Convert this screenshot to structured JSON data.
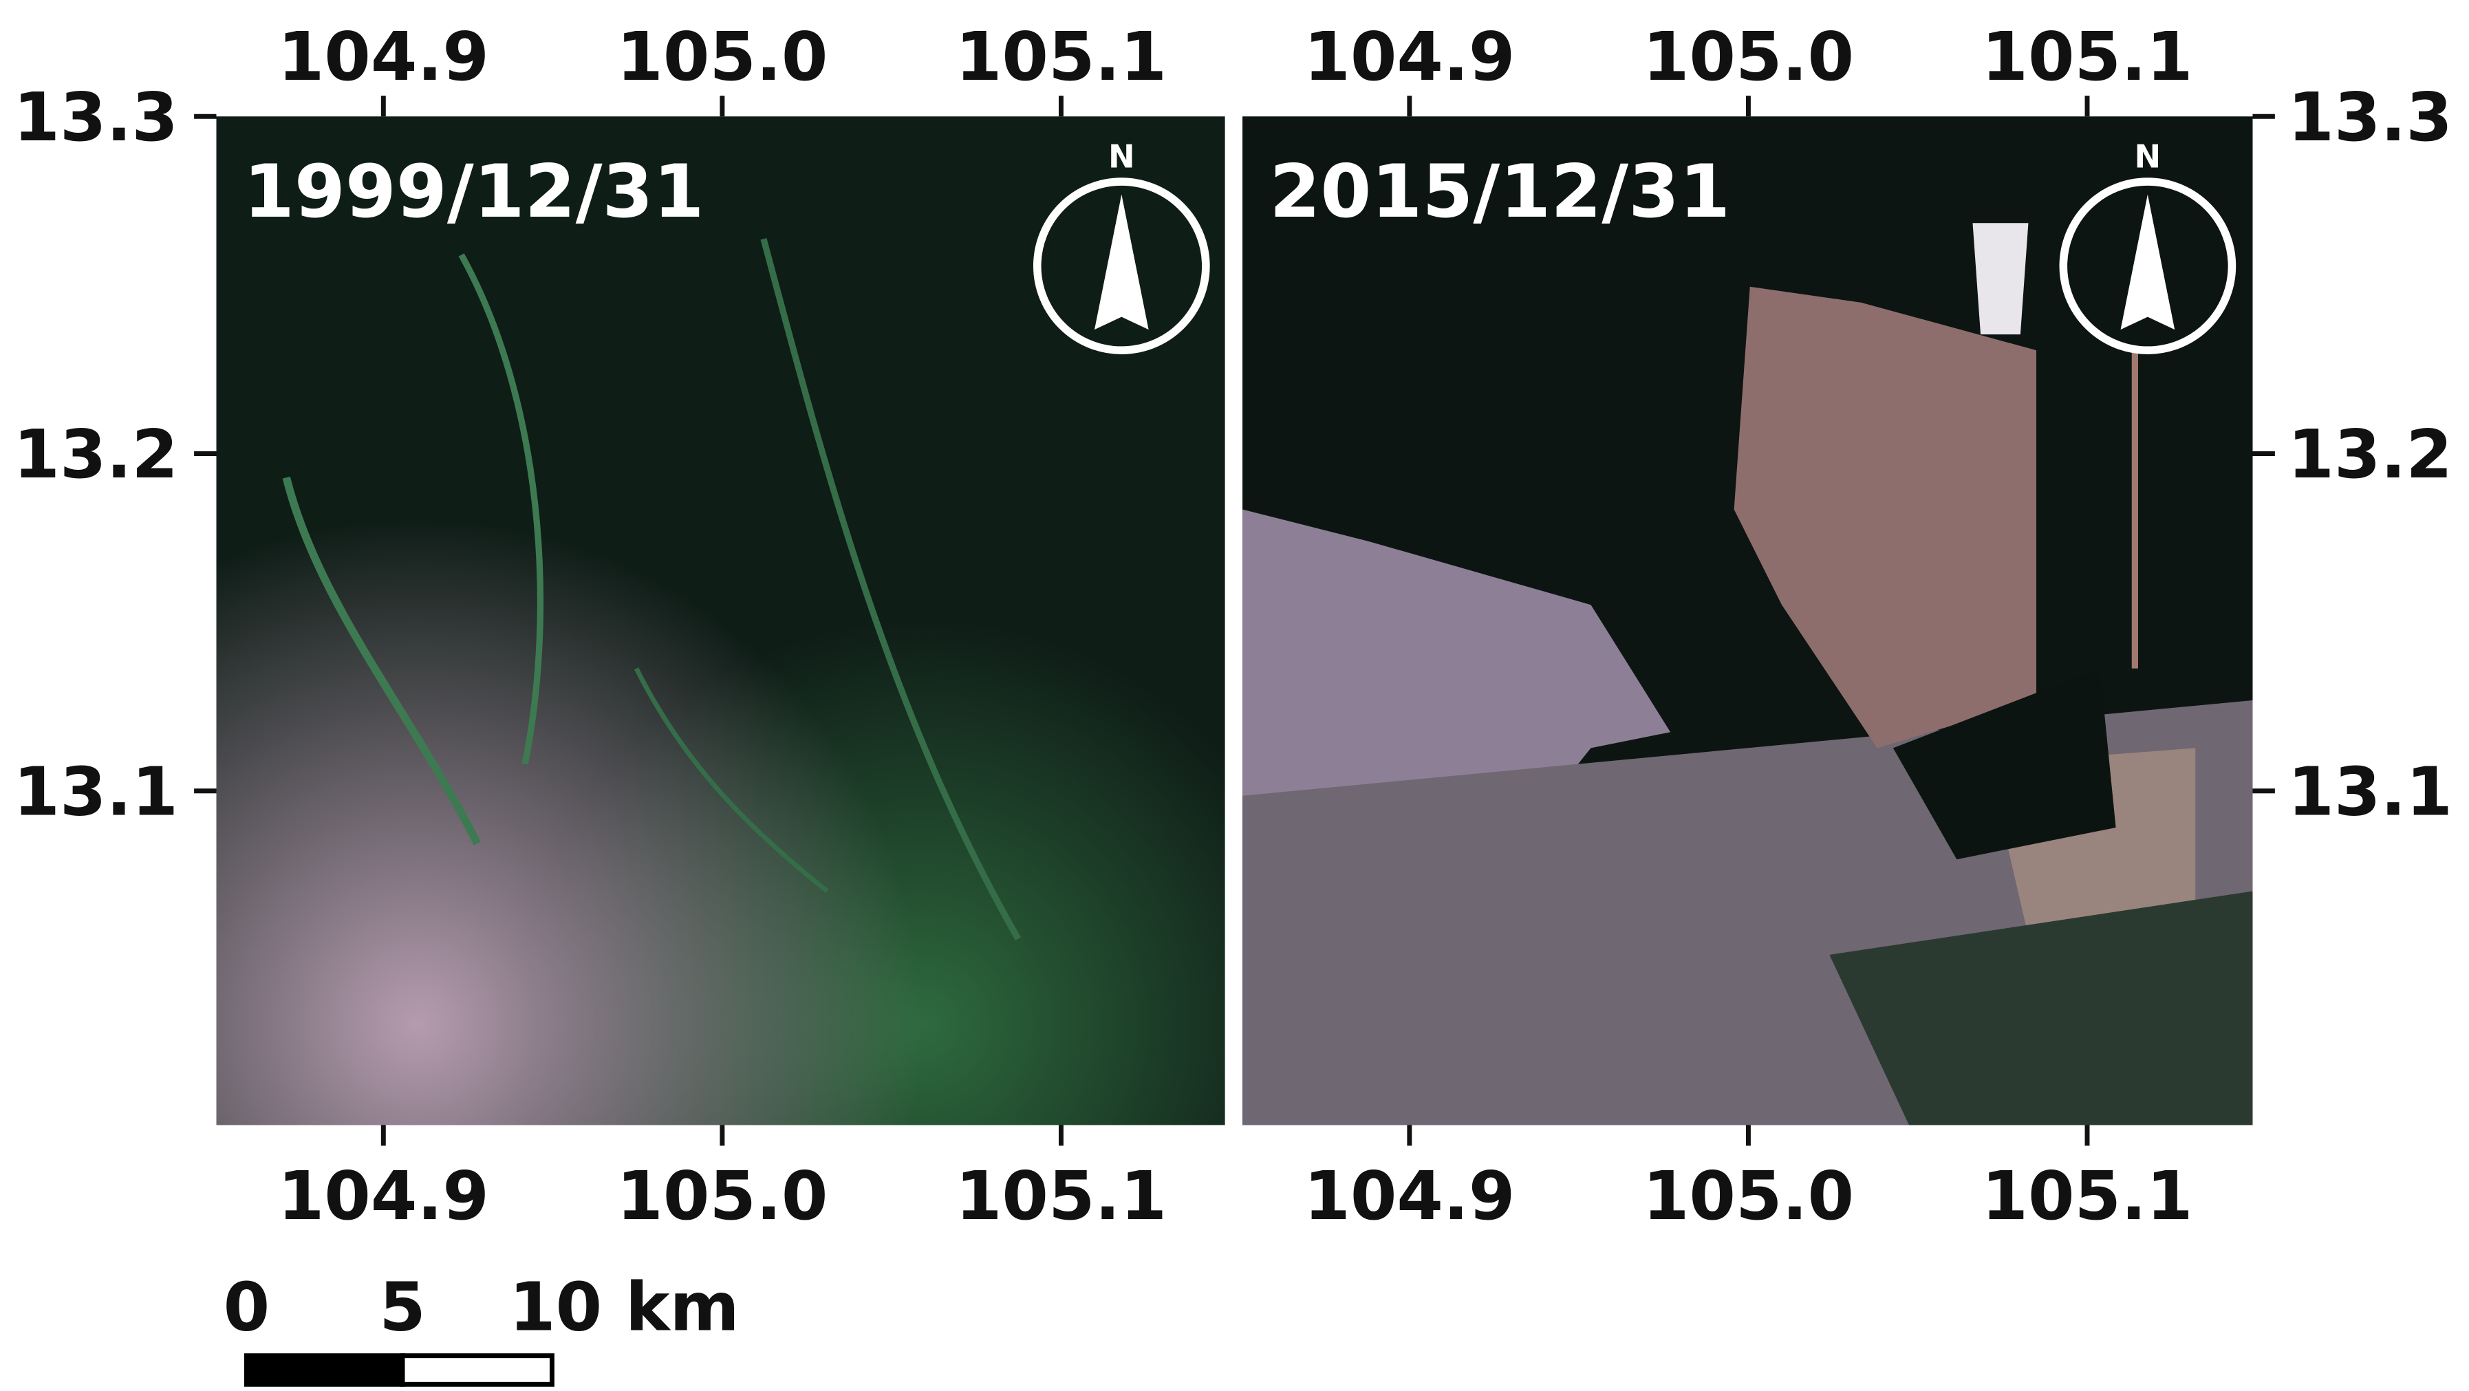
{
  "panels": [
    {
      "date": "1999/12/31",
      "north": "N"
    },
    {
      "date": "2015/12/31",
      "north": "N"
    }
  ],
  "axes": {
    "x_ticks": [
      "104.9",
      "105.0",
      "105.1"
    ],
    "y_ticks": [
      "13.3",
      "13.2",
      "13.1"
    ]
  },
  "scale_bar": {
    "labels": [
      "0",
      "5",
      "10 km"
    ]
  }
}
